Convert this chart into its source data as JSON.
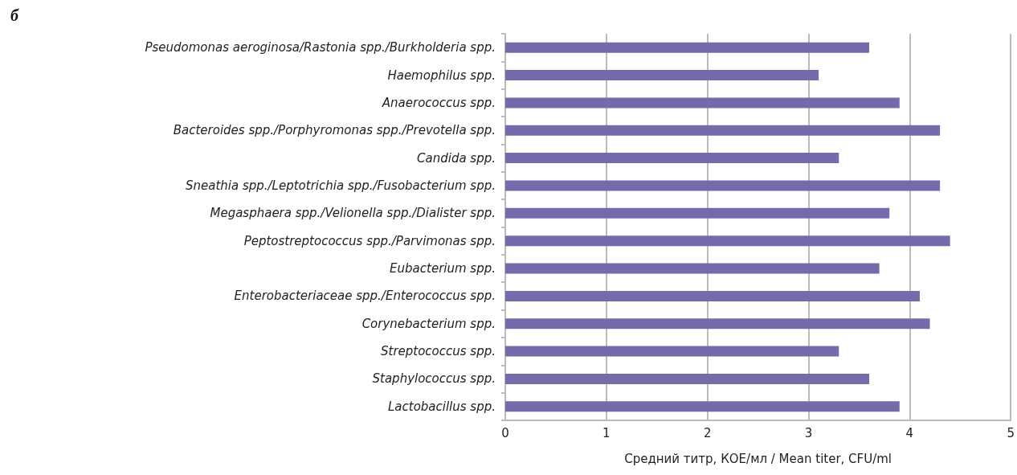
{
  "chart_data": {
    "type": "bar",
    "orientation": "horizontal",
    "title": "б",
    "xlabel": "Средний титр, КОЕ/мл / Mean titer, CFU/ml",
    "categories": [
      "Pseudomonas aeroginosa/Rastonia spp./Burkholderia spp.",
      "Haemophilus spp.",
      "Anaerococcus spp.",
      "Bacteroides spp./Porphyromonas spp./Prevotella spp.",
      "Candida spp.",
      "Sneathia spp./Leptotrichia spp./Fusobacterium spp.",
      "Megasphaera spp./Velionella spp./Dialister spp.",
      "Peptostreptococcus spp./Parvimonas spp.",
      "Eubacterium spp.",
      "Enterobacteriaceae spp./Enterococcus spp.",
      "Corynebacterium spp.",
      "Streptococcus spp.",
      "Staphylococcus spp.",
      "Lactobacillus spp."
    ],
    "values": [
      3.6,
      3.1,
      3.9,
      4.3,
      3.3,
      4.3,
      3.8,
      4.4,
      3.7,
      4.1,
      4.2,
      3.3,
      3.6,
      3.9
    ],
    "color": "#756bab",
    "xlim": [
      0,
      5
    ],
    "xticks": [
      0,
      1,
      2,
      3,
      4,
      5
    ],
    "grid": "x"
  }
}
